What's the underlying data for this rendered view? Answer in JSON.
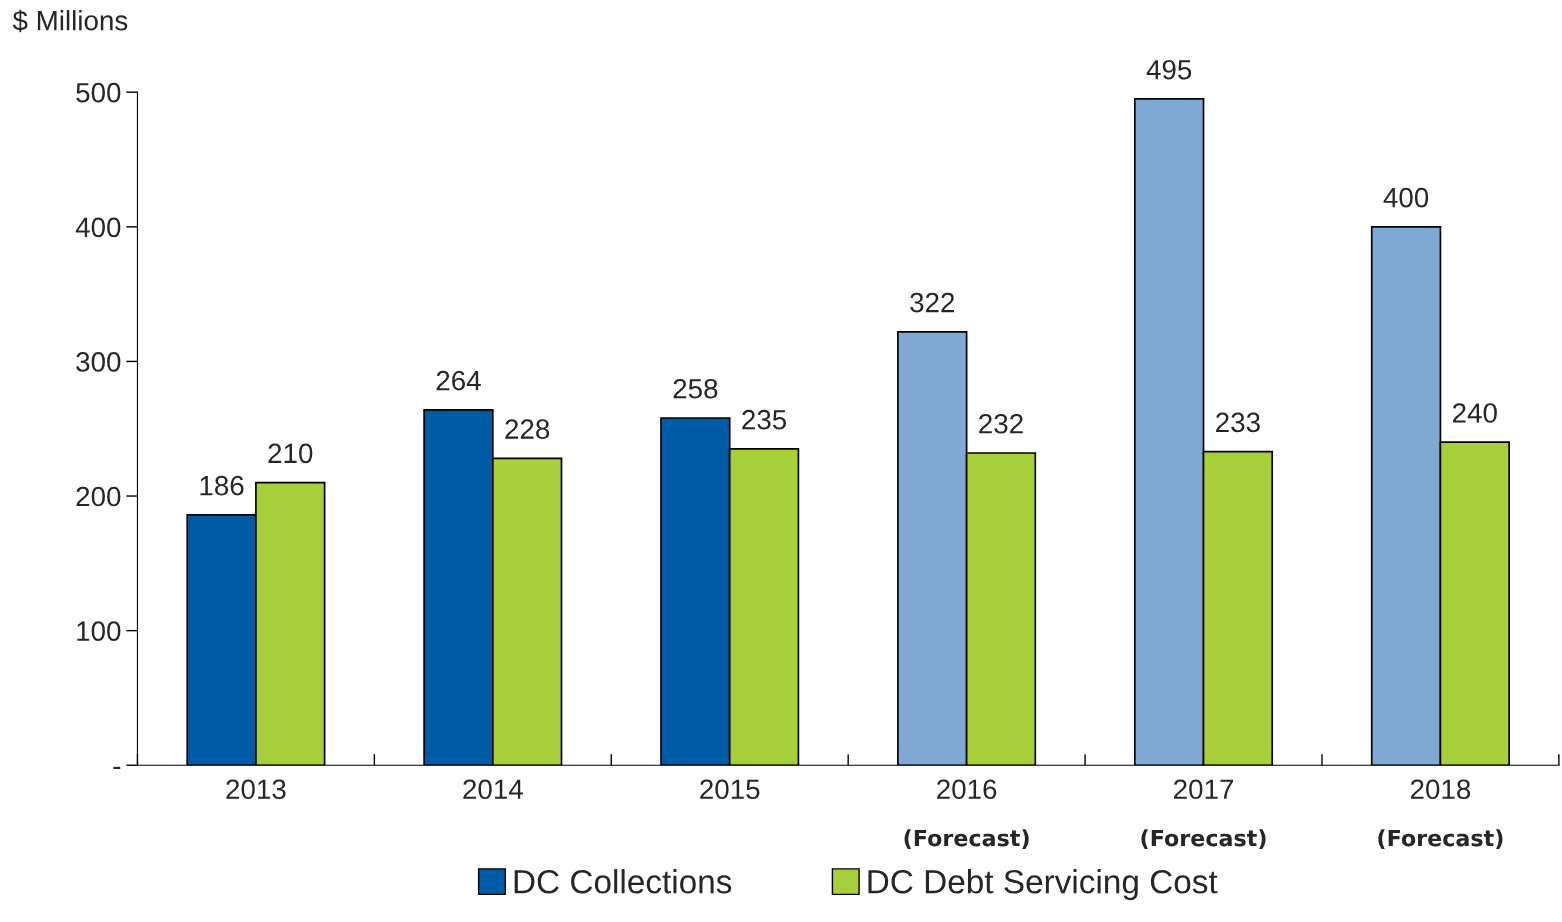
{
  "chart_data": {
    "type": "bar",
    "ylabel": "$ Millions",
    "categories": [
      "2013",
      "2014",
      "2015",
      "2016\n(Forecast)",
      "2017\n(Forecast)",
      "2018\n(Forecast)"
    ],
    "series": [
      {
        "name": "DC Collections",
        "color": "#005ba6",
        "colors": [
          "#005ba6",
          "#005ba6",
          "#005ba6",
          "#7fa8d4",
          "#7fa8d4",
          "#7fa8d4"
        ],
        "values": [
          186,
          264,
          258,
          322,
          495,
          400
        ]
      },
      {
        "name": "DC Debt Servicing Cost",
        "color": "#a6cf3a",
        "values": [
          210,
          228,
          235,
          232,
          233,
          240
        ]
      }
    ],
    "ylim": [
      0,
      500
    ],
    "yticks": [
      {
        "value": 0,
        "label": "-"
      },
      100,
      200,
      300,
      400,
      500
    ],
    "data_labels": true,
    "grid": false,
    "legend": "bottom"
  }
}
